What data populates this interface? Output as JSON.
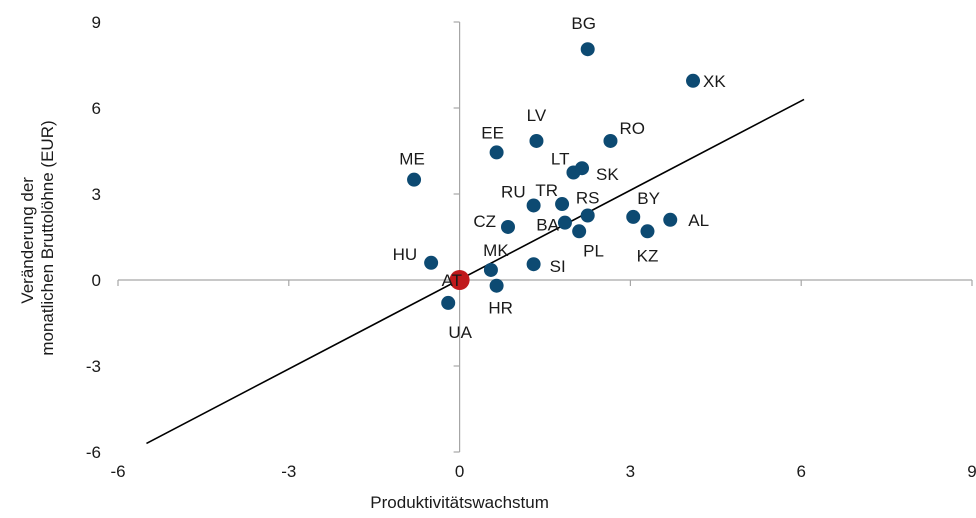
{
  "chart_data": {
    "type": "scatter",
    "title": "",
    "xlabel": "Produktivitätswachstum",
    "ylabel_lines": [
      "Veränderung der",
      "monatlichen Bruttolöhne (EUR)"
    ],
    "xlim": [
      -6,
      9
    ],
    "ylim": [
      -6,
      9
    ],
    "xticks": [
      -6,
      -3,
      0,
      3,
      6,
      9
    ],
    "yticks": [
      9,
      6,
      3,
      0,
      -3,
      -6
    ],
    "grid": false,
    "legend": "none",
    "colors": {
      "points": "#0d4a72",
      "highlight": "#c0191c",
      "axis": "#a6a6a6",
      "trend": "#000000"
    },
    "trendline": {
      "x1": -5.5,
      "y1": -5.7,
      "x2": 6.05,
      "y2": 6.3
    },
    "points": [
      {
        "label": "BG",
        "x": 2.25,
        "y": 8.05
      },
      {
        "label": "XK",
        "x": 4.1,
        "y": 6.95
      },
      {
        "label": "LV",
        "x": 1.35,
        "y": 4.85
      },
      {
        "label": "RO",
        "x": 2.65,
        "y": 4.85
      },
      {
        "label": "EE",
        "x": 0.65,
        "y": 4.45
      },
      {
        "label": "LT",
        "x": 2.0,
        "y": 3.75
      },
      {
        "label": "SK",
        "x": 2.15,
        "y": 3.9
      },
      {
        "label": "ME",
        "x": -0.8,
        "y": 3.5
      },
      {
        "label": "RU",
        "x": 1.3,
        "y": 2.6
      },
      {
        "label": "TR",
        "x": 1.8,
        "y": 2.65
      },
      {
        "label": "RS",
        "x": 2.25,
        "y": 2.25
      },
      {
        "label": "BY",
        "x": 3.05,
        "y": 2.2
      },
      {
        "label": "AL",
        "x": 3.7,
        "y": 2.1
      },
      {
        "label": "CZ",
        "x": 0.85,
        "y": 1.85
      },
      {
        "label": "BA",
        "x": 1.85,
        "y": 2.0
      },
      {
        "label": "PL",
        "x": 2.1,
        "y": 1.7
      },
      {
        "label": "KZ",
        "x": 3.3,
        "y": 1.7
      },
      {
        "label": "HU",
        "x": -0.5,
        "y": 0.6
      },
      {
        "label": "AT",
        "x": 0.0,
        "y": 0.0,
        "highlight": true
      },
      {
        "label": "MK",
        "x": 0.55,
        "y": 0.35
      },
      {
        "label": "SI",
        "x": 1.3,
        "y": 0.55
      },
      {
        "label": "HR",
        "x": 0.65,
        "y": -0.2
      },
      {
        "label": "UA",
        "x": -0.2,
        "y": -0.8
      }
    ]
  }
}
